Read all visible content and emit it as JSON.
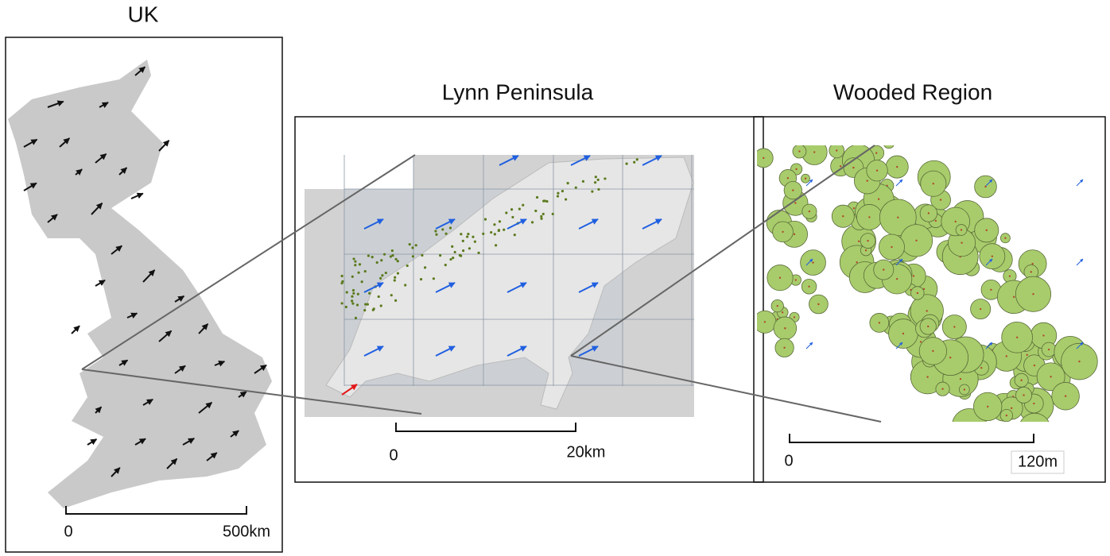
{
  "panels": [
    {
      "title": "UK",
      "scale": {
        "start": "0",
        "end": "500km"
      }
    },
    {
      "title": "Lynn Peninsula",
      "scale": {
        "start": "0",
        "end": "20km"
      }
    },
    {
      "title": "Wooded Region",
      "scale": {
        "start": "0",
        "end": "120m"
      }
    }
  ]
}
